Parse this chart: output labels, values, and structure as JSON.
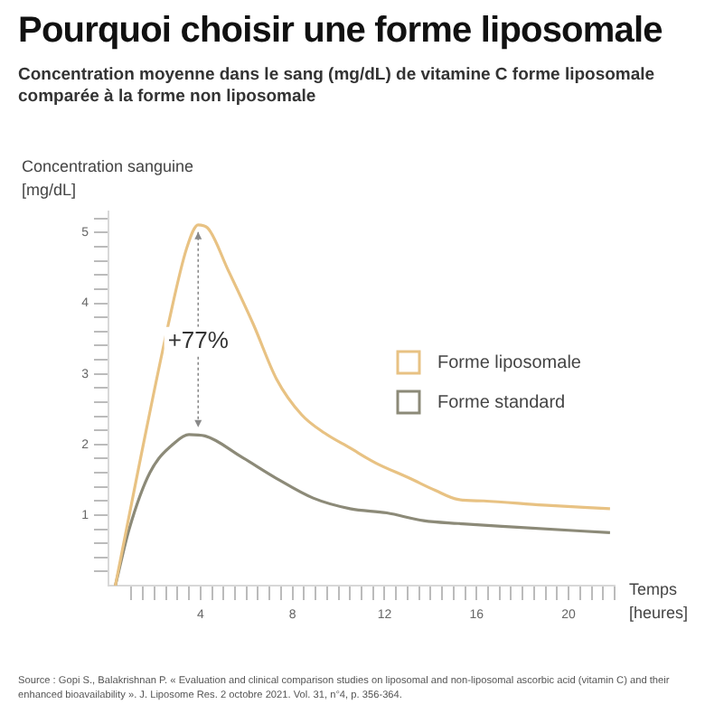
{
  "chart_data": {
    "type": "line",
    "title": "Pourquoi choisir une forme liposomale",
    "subtitle": "Concentration moyenne dans le sang (mg/dL) de vitamine C forme liposomale comparée à la forme non liposomale",
    "xlabel": "Temps\n[heures]",
    "ylabel": "Concentration sanguine\n[mg/dL]",
    "series": [
      {
        "name": "Forme liposomale",
        "color": "#e8c283",
        "x": [
          0.3,
          1.3,
          2.6,
          3.4,
          3.9,
          4.3,
          5.2,
          6.3,
          7.3,
          8.4,
          9.4,
          10.5,
          11.6,
          13.1,
          14.2,
          15.2,
          16.3,
          18.9,
          21.8
        ],
        "values": [
          0,
          1.65,
          3.7,
          4.78,
          5.11,
          5.07,
          4.47,
          3.7,
          2.93,
          2.42,
          2.16,
          1.95,
          1.74,
          1.52,
          1.35,
          1.22,
          1.2,
          1.14,
          1.09
        ]
      },
      {
        "name": "Forme standard",
        "color": "#8c8a78",
        "x": [
          0.3,
          0.9,
          1.8,
          2.9,
          3.5,
          4.2,
          5.8,
          7.3,
          8.9,
          10.5,
          12.1,
          13.7,
          15.2,
          17.6,
          21.8
        ],
        "values": [
          0,
          0.8,
          1.6,
          2.03,
          2.14,
          2.12,
          1.82,
          1.52,
          1.24,
          1.09,
          1.03,
          0.92,
          0.88,
          0.83,
          0.75
        ]
      }
    ],
    "xlim": [
      0,
      22
    ],
    "ylim": [
      0,
      5.3
    ],
    "xticks": [
      {
        "value": 1,
        "label": null
      },
      {
        "value": 1.5,
        "label": null
      },
      {
        "value": 2,
        "label": null
      },
      {
        "value": 2.5,
        "label": null
      },
      {
        "value": 3,
        "label": null
      },
      {
        "value": 3.5,
        "label": null
      },
      4,
      {
        "value": 4.5,
        "label": null
      },
      {
        "value": 5,
        "label": null
      },
      {
        "value": 5.5,
        "label": null
      },
      {
        "value": 6,
        "label": null
      },
      {
        "value": 6.5,
        "label": null
      },
      {
        "value": 7,
        "label": null
      },
      {
        "value": 7.5,
        "label": null
      },
      8,
      {
        "value": 8.5,
        "label": null
      },
      {
        "value": 9,
        "label": null
      },
      {
        "value": 9.5,
        "label": null
      },
      {
        "value": 10,
        "label": null
      },
      {
        "value": 10.5,
        "label": null
      },
      {
        "value": 11,
        "label": null
      },
      {
        "value": 11.5,
        "label": null
      },
      12,
      {
        "value": 12.5,
        "label": null
      },
      {
        "value": 13,
        "label": null
      },
      {
        "value": 13.5,
        "label": null
      },
      {
        "value": 14,
        "label": null
      },
      {
        "value": 14.5,
        "label": null
      },
      {
        "value": 15,
        "label": null
      },
      {
        "value": 15.5,
        "label": null
      },
      16,
      {
        "value": 16.5,
        "label": null
      },
      {
        "value": 17,
        "label": null
      },
      {
        "value": 17.5,
        "label": null
      },
      {
        "value": 18,
        "label": null
      },
      {
        "value": 18.5,
        "label": null
      },
      {
        "value": 19,
        "label": null
      },
      {
        "value": 19.5,
        "label": null
      },
      20,
      {
        "value": 20.5,
        "label": null
      },
      {
        "value": 21,
        "label": null
      },
      {
        "value": 21.5,
        "label": null
      },
      {
        "value": 22,
        "label": null
      }
    ],
    "yticks": [
      {
        "value": 0.2,
        "label": null
      },
      {
        "value": 0.4,
        "label": null
      },
      {
        "value": 0.6,
        "label": null
      },
      {
        "value": 0.8,
        "label": null
      },
      1,
      {
        "value": 1.2,
        "label": null
      },
      {
        "value": 1.4,
        "label": null
      },
      {
        "value": 1.6,
        "label": null
      },
      {
        "value": 1.8,
        "label": null
      },
      2,
      {
        "value": 2.2,
        "label": null
      },
      {
        "value": 2.4,
        "label": null
      },
      {
        "value": 2.6,
        "label": null
      },
      {
        "value": 2.8,
        "label": null
      },
      3,
      {
        "value": 3.2,
        "label": null
      },
      {
        "value": 3.4,
        "label": null
      },
      {
        "value": 3.6,
        "label": null
      },
      {
        "value": 3.8,
        "label": null
      },
      4,
      {
        "value": 4.2,
        "label": null
      },
      {
        "value": 4.4,
        "label": null
      },
      {
        "value": 4.6,
        "label": null
      },
      {
        "value": 4.8,
        "label": null
      },
      5,
      {
        "value": 5.2,
        "label": null
      }
    ],
    "grid": false,
    "legend": "right",
    "marker": "none",
    "line_style": "solid",
    "annotations": [
      {
        "text": "+77%",
        "x": 3.9,
        "y": 3.46
      },
      "Source : Gopi S., Balakrishnan P. « Evaluation and clinical comparison studies on liposomal and non-liposomal ascorbic acid (vitamin C) and their enhanced bioavailability ». J. Liposome Res. 2 octobre 2021. Vol. 31, n°4, p. 356-364."
    ]
  }
}
